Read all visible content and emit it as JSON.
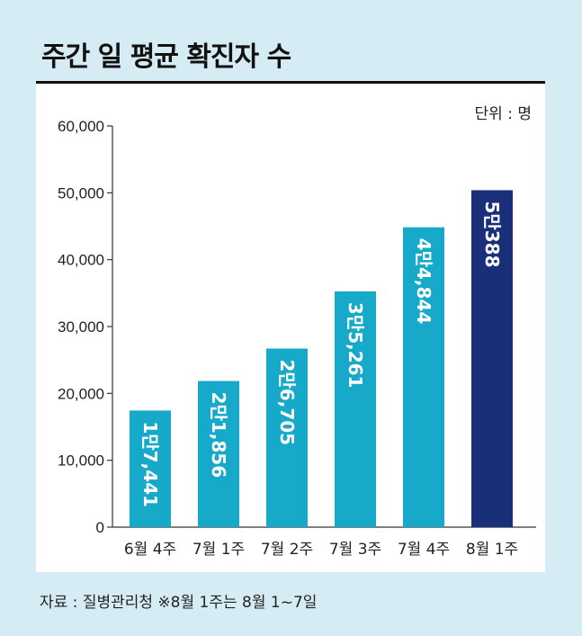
{
  "header": {
    "title": "주간 일 평균 확진자 수"
  },
  "unit_label": "단위 : 명",
  "source_note": "자료 : 질병관리청  ※8월 1주는 8월 1~7일",
  "colors": {
    "bar": "#17a9c9",
    "highlight": "#1a2f7a",
    "background": "#d6ecf5"
  },
  "chart_data": {
    "type": "bar",
    "title": "주간 일 평균 확진자 수",
    "categories": [
      "6월 4주",
      "7월 1주",
      "7월 2주",
      "7월 3주",
      "7월 4주",
      "8월 1주"
    ],
    "values": [
      17441,
      21856,
      26705,
      35261,
      44844,
      50388
    ],
    "data_labels": [
      "1만7,441",
      "2만1,856",
      "2만6,705",
      "3만5,261",
      "4만4,844",
      "5만388"
    ],
    "ylim": [
      0,
      60000
    ],
    "yticks": [
      0,
      10000,
      20000,
      30000,
      40000,
      50000,
      60000
    ],
    "ytick_labels": [
      "0",
      "10,000",
      "20,000",
      "30,000",
      "40,000",
      "50,000",
      "60,000"
    ],
    "grid": false,
    "highlight_index": 5
  }
}
